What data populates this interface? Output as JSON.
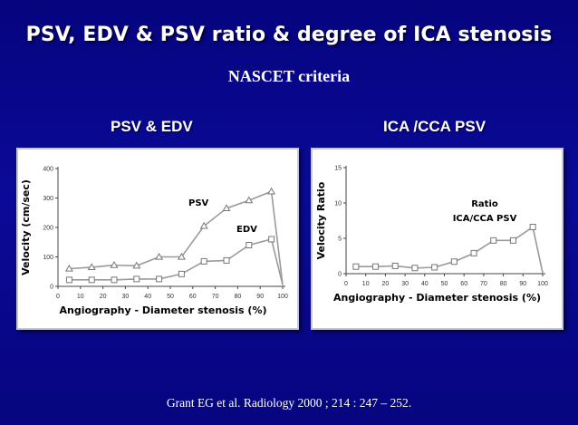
{
  "slide": {
    "title": "PSV, EDV & PSV ratio & degree of ICA stenosis",
    "subtitle": "NASCET criteria",
    "left_heading": "PSV & EDV",
    "right_heading": "ICA /CCA PSV",
    "citation": "Grant EG et al. Radiology 2000 ; 214 : 247 – 252.",
    "colors": {
      "background": "#0a0a98",
      "text": "#ffffff",
      "series_line": "#9a9a9a",
      "axis": "#444444"
    }
  },
  "chart_data": [
    {
      "type": "line",
      "xlabel": "Angiography - Diameter stenosis (%)",
      "ylabel": "Velocity (cm/sec)",
      "xlim": [
        0,
        100
      ],
      "ylim": [
        0,
        400
      ],
      "xticks": [
        0,
        10,
        20,
        30,
        40,
        50,
        60,
        70,
        80,
        90,
        100
      ],
      "yticks": [
        0,
        100,
        200,
        300,
        400
      ],
      "grid": false,
      "series": [
        {
          "name": "PSV",
          "marker": "triangle",
          "x": [
            5,
            15,
            25,
            35,
            45,
            55,
            65,
            75,
            85,
            95,
            100
          ],
          "y": [
            60,
            65,
            72,
            70,
            100,
            100,
            205,
            265,
            292,
            322,
            5
          ]
        },
        {
          "name": "EDV",
          "marker": "square",
          "x": [
            5,
            15,
            25,
            35,
            45,
            55,
            65,
            75,
            85,
            95,
            100
          ],
          "y": [
            22,
            22,
            22,
            25,
            25,
            42,
            85,
            88,
            140,
            160,
            5
          ]
        }
      ]
    },
    {
      "type": "line",
      "xlabel": "Angiography - Diameter stenosis (%)",
      "ylabel": "Velocity Ratio",
      "xlim": [
        0,
        100
      ],
      "ylim": [
        0,
        15
      ],
      "xticks": [
        0,
        10,
        20,
        30,
        40,
        50,
        60,
        70,
        80,
        90,
        100
      ],
      "yticks": [
        0,
        5,
        10,
        15
      ],
      "grid": false,
      "annotation": [
        "Ratio",
        "ICA/CCA PSV"
      ],
      "series": [
        {
          "name": "Ratio ICA/CCA PSV",
          "marker": "square",
          "x": [
            5,
            15,
            25,
            35,
            45,
            55,
            65,
            75,
            85,
            95,
            100
          ],
          "y": [
            1.0,
            1.0,
            1.1,
            0.8,
            0.9,
            1.7,
            2.9,
            4.7,
            4.7,
            6.6,
            0.1
          ]
        }
      ]
    }
  ]
}
